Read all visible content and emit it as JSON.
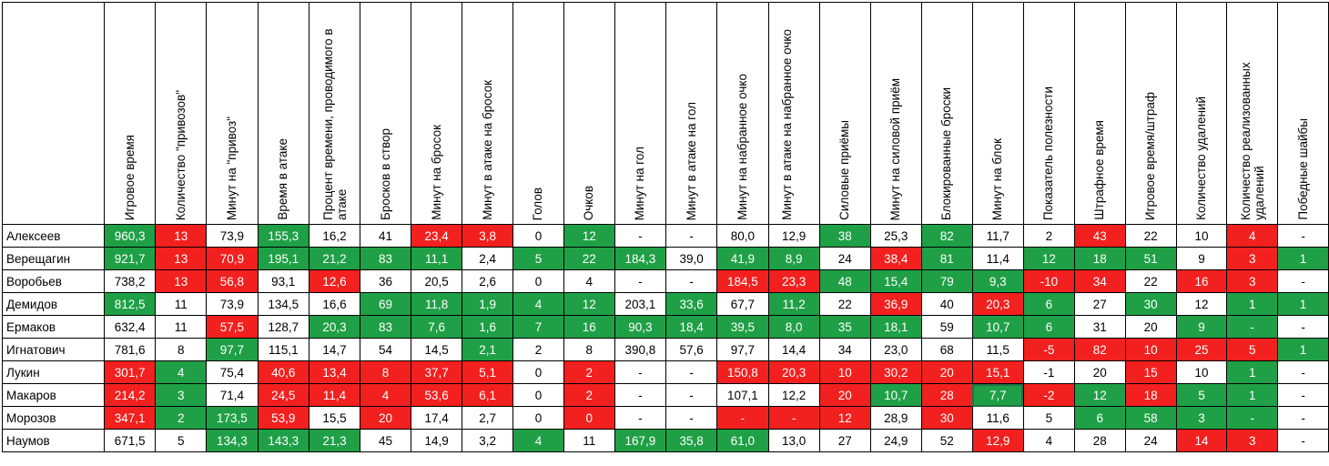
{
  "headers": [
    "Игровое время",
    "Количество \"привозов\"",
    "Минут на \"привоз\"",
    "Время в атаке",
    "Процент времени, проводимого в атаке",
    "Бросков в створ",
    "Минут на бросок",
    "Минут в атаке на бросок",
    "Голов",
    "Очков",
    "Минут на гол",
    "Минут в атаке на гол",
    "Минут на набранное очко",
    "Минут в атаке на набранное очко",
    "Силовые приёмы",
    "Минут на силовой приём",
    "Блокированные броски",
    "Минут на блок",
    "Показатель полезности",
    "Штрафное время",
    "Игровое время/штраф",
    "Количество удалений",
    "Количество реализованных удалений",
    "Победные шайбы"
  ],
  "rows": [
    {
      "name": "Алексеев",
      "cells": [
        [
          "960,3",
          "g"
        ],
        [
          "13",
          "r"
        ],
        [
          "73,9",
          ""
        ],
        [
          "155,3",
          "g"
        ],
        [
          "16,2",
          ""
        ],
        [
          "41",
          ""
        ],
        [
          "23,4",
          "r"
        ],
        [
          "3,8",
          "r"
        ],
        [
          "0",
          ""
        ],
        [
          "12",
          "g"
        ],
        [
          "-",
          ""
        ],
        [
          "-",
          ""
        ],
        [
          "80,0",
          ""
        ],
        [
          "12,9",
          ""
        ],
        [
          "38",
          "g"
        ],
        [
          "25,3",
          ""
        ],
        [
          "82",
          "g"
        ],
        [
          "11,7",
          ""
        ],
        [
          "2",
          ""
        ],
        [
          "43",
          "r"
        ],
        [
          "22",
          ""
        ],
        [
          "10",
          ""
        ],
        [
          "4",
          "r"
        ],
        [
          "-",
          ""
        ]
      ]
    },
    {
      "name": "Верещагин",
      "cells": [
        [
          "921,7",
          "g"
        ],
        [
          "13",
          "r"
        ],
        [
          "70,9",
          "r"
        ],
        [
          "195,1",
          "g"
        ],
        [
          "21,2",
          "g"
        ],
        [
          "83",
          "g"
        ],
        [
          "11,1",
          "g"
        ],
        [
          "2,4",
          ""
        ],
        [
          "5",
          "g"
        ],
        [
          "22",
          "g"
        ],
        [
          "184,3",
          "g"
        ],
        [
          "39,0",
          ""
        ],
        [
          "41,9",
          "g"
        ],
        [
          "8,9",
          "g"
        ],
        [
          "24",
          ""
        ],
        [
          "38,4",
          "r"
        ],
        [
          "81",
          "g"
        ],
        [
          "11,4",
          ""
        ],
        [
          "12",
          "g"
        ],
        [
          "18",
          "g"
        ],
        [
          "51",
          "g"
        ],
        [
          "9",
          ""
        ],
        [
          "3",
          "r"
        ],
        [
          "1",
          "g"
        ]
      ]
    },
    {
      "name": "Воробьев",
      "cells": [
        [
          "738,2",
          ""
        ],
        [
          "13",
          "r"
        ],
        [
          "56,8",
          "r"
        ],
        [
          "93,1",
          ""
        ],
        [
          "12,6",
          "r"
        ],
        [
          "36",
          ""
        ],
        [
          "20,5",
          ""
        ],
        [
          "2,6",
          ""
        ],
        [
          "0",
          ""
        ],
        [
          "4",
          ""
        ],
        [
          "-",
          ""
        ],
        [
          "-",
          ""
        ],
        [
          "184,5",
          "r"
        ],
        [
          "23,3",
          "r"
        ],
        [
          "48",
          "g"
        ],
        [
          "15,4",
          "g"
        ],
        [
          "79",
          "g"
        ],
        [
          "9,3",
          "g"
        ],
        [
          "-10",
          "r"
        ],
        [
          "34",
          "r"
        ],
        [
          "22",
          ""
        ],
        [
          "16",
          "r"
        ],
        [
          "3",
          "r"
        ],
        [
          "-",
          ""
        ]
      ]
    },
    {
      "name": "Демидов",
      "cells": [
        [
          "812,5",
          "g"
        ],
        [
          "11",
          ""
        ],
        [
          "73,9",
          ""
        ],
        [
          "134,5",
          ""
        ],
        [
          "16,6",
          ""
        ],
        [
          "69",
          "g"
        ],
        [
          "11,8",
          "g"
        ],
        [
          "1,9",
          "g"
        ],
        [
          "4",
          "g"
        ],
        [
          "12",
          "g"
        ],
        [
          "203,1",
          ""
        ],
        [
          "33,6",
          "g"
        ],
        [
          "67,7",
          ""
        ],
        [
          "11,2",
          "g"
        ],
        [
          "22",
          ""
        ],
        [
          "36,9",
          "r"
        ],
        [
          "40",
          ""
        ],
        [
          "20,3",
          "r"
        ],
        [
          "6",
          "g"
        ],
        [
          "27",
          ""
        ],
        [
          "30",
          "g"
        ],
        [
          "12",
          ""
        ],
        [
          "1",
          "g"
        ],
        [
          "1",
          "g"
        ]
      ]
    },
    {
      "name": "Ермаков",
      "cells": [
        [
          "632,4",
          ""
        ],
        [
          "11",
          ""
        ],
        [
          "57,5",
          "r"
        ],
        [
          "128,7",
          ""
        ],
        [
          "20,3",
          "g"
        ],
        [
          "83",
          "g"
        ],
        [
          "7,6",
          "g"
        ],
        [
          "1,6",
          "g"
        ],
        [
          "7",
          "g"
        ],
        [
          "16",
          "g"
        ],
        [
          "90,3",
          "g"
        ],
        [
          "18,4",
          "g"
        ],
        [
          "39,5",
          "g"
        ],
        [
          "8,0",
          "g"
        ],
        [
          "35",
          "g"
        ],
        [
          "18,1",
          "g"
        ],
        [
          "59",
          ""
        ],
        [
          "10,7",
          "g"
        ],
        [
          "6",
          "g"
        ],
        [
          "31",
          ""
        ],
        [
          "20",
          ""
        ],
        [
          "9",
          "g"
        ],
        [
          "-",
          "g"
        ],
        [
          "-",
          ""
        ]
      ]
    },
    {
      "name": "Игнатович",
      "cells": [
        [
          "781,6",
          ""
        ],
        [
          "8",
          ""
        ],
        [
          "97,7",
          "g"
        ],
        [
          "115,1",
          ""
        ],
        [
          "14,7",
          ""
        ],
        [
          "54",
          ""
        ],
        [
          "14,5",
          ""
        ],
        [
          "2,1",
          "g"
        ],
        [
          "2",
          ""
        ],
        [
          "8",
          ""
        ],
        [
          "390,8",
          ""
        ],
        [
          "57,6",
          ""
        ],
        [
          "97,7",
          ""
        ],
        [
          "14,4",
          ""
        ],
        [
          "34",
          ""
        ],
        [
          "23,0",
          ""
        ],
        [
          "68",
          ""
        ],
        [
          "11,5",
          ""
        ],
        [
          "-5",
          "r"
        ],
        [
          "82",
          "r"
        ],
        [
          "10",
          "r"
        ],
        [
          "25",
          "r"
        ],
        [
          "5",
          "r"
        ],
        [
          "1",
          "g"
        ]
      ]
    },
    {
      "name": "Лукин",
      "cells": [
        [
          "301,7",
          "r"
        ],
        [
          "4",
          "g"
        ],
        [
          "75,4",
          ""
        ],
        [
          "40,6",
          "r"
        ],
        [
          "13,4",
          "r"
        ],
        [
          "8",
          "r"
        ],
        [
          "37,7",
          "r"
        ],
        [
          "5,1",
          "r"
        ],
        [
          "0",
          ""
        ],
        [
          "2",
          "r"
        ],
        [
          "-",
          ""
        ],
        [
          "-",
          ""
        ],
        [
          "150,8",
          "r"
        ],
        [
          "20,3",
          "r"
        ],
        [
          "10",
          "r"
        ],
        [
          "30,2",
          "r"
        ],
        [
          "20",
          "r"
        ],
        [
          "15,1",
          "r"
        ],
        [
          "-1",
          ""
        ],
        [
          "20",
          ""
        ],
        [
          "15",
          "r"
        ],
        [
          "10",
          ""
        ],
        [
          "1",
          "g"
        ],
        [
          "-",
          ""
        ]
      ]
    },
    {
      "name": "Макаров",
      "cells": [
        [
          "214,2",
          "r"
        ],
        [
          "3",
          "g"
        ],
        [
          "71,4",
          ""
        ],
        [
          "24,5",
          "r"
        ],
        [
          "11,4",
          "r"
        ],
        [
          "4",
          "r"
        ],
        [
          "53,6",
          "r"
        ],
        [
          "6,1",
          "r"
        ],
        [
          "0",
          ""
        ],
        [
          "2",
          "r"
        ],
        [
          "-",
          ""
        ],
        [
          "-",
          ""
        ],
        [
          "107,1",
          ""
        ],
        [
          "12,2",
          ""
        ],
        [
          "20",
          "r"
        ],
        [
          "10,7",
          "g"
        ],
        [
          "28",
          "r"
        ],
        [
          "7,7",
          "g sel"
        ],
        [
          "-2",
          "r"
        ],
        [
          "12",
          "g"
        ],
        [
          "18",
          "r"
        ],
        [
          "5",
          "g"
        ],
        [
          "1",
          "g"
        ],
        [
          "-",
          ""
        ]
      ]
    },
    {
      "name": "Морозов",
      "cells": [
        [
          "347,1",
          "r"
        ],
        [
          "2",
          "g"
        ],
        [
          "173,5",
          "g"
        ],
        [
          "53,9",
          "r"
        ],
        [
          "15,5",
          ""
        ],
        [
          "20",
          "r"
        ],
        [
          "17,4",
          ""
        ],
        [
          "2,7",
          ""
        ],
        [
          "0",
          ""
        ],
        [
          "0",
          "r"
        ],
        [
          "-",
          ""
        ],
        [
          "-",
          ""
        ],
        [
          "-",
          "r"
        ],
        [
          "-",
          "r"
        ],
        [
          "12",
          "r"
        ],
        [
          "28,9",
          ""
        ],
        [
          "30",
          "r"
        ],
        [
          "11,6",
          ""
        ],
        [
          "5",
          ""
        ],
        [
          "6",
          "g"
        ],
        [
          "58",
          "g"
        ],
        [
          "3",
          "g"
        ],
        [
          "-",
          "g"
        ],
        [
          "-",
          ""
        ]
      ]
    },
    {
      "name": "Наумов",
      "cells": [
        [
          "671,5",
          ""
        ],
        [
          "5",
          ""
        ],
        [
          "134,3",
          "g"
        ],
        [
          "143,3",
          "g"
        ],
        [
          "21,3",
          "g"
        ],
        [
          "45",
          ""
        ],
        [
          "14,9",
          ""
        ],
        [
          "3,2",
          ""
        ],
        [
          "4",
          "g"
        ],
        [
          "11",
          ""
        ],
        [
          "167,9",
          "g"
        ],
        [
          "35,8",
          "g"
        ],
        [
          "61,0",
          "g"
        ],
        [
          "13,0",
          ""
        ],
        [
          "27",
          ""
        ],
        [
          "24,9",
          ""
        ],
        [
          "52",
          ""
        ],
        [
          "12,9",
          "r"
        ],
        [
          "4",
          ""
        ],
        [
          "28",
          ""
        ],
        [
          "24",
          ""
        ],
        [
          "14",
          "r"
        ],
        [
          "3",
          "r"
        ],
        [
          "-",
          ""
        ]
      ]
    }
  ]
}
